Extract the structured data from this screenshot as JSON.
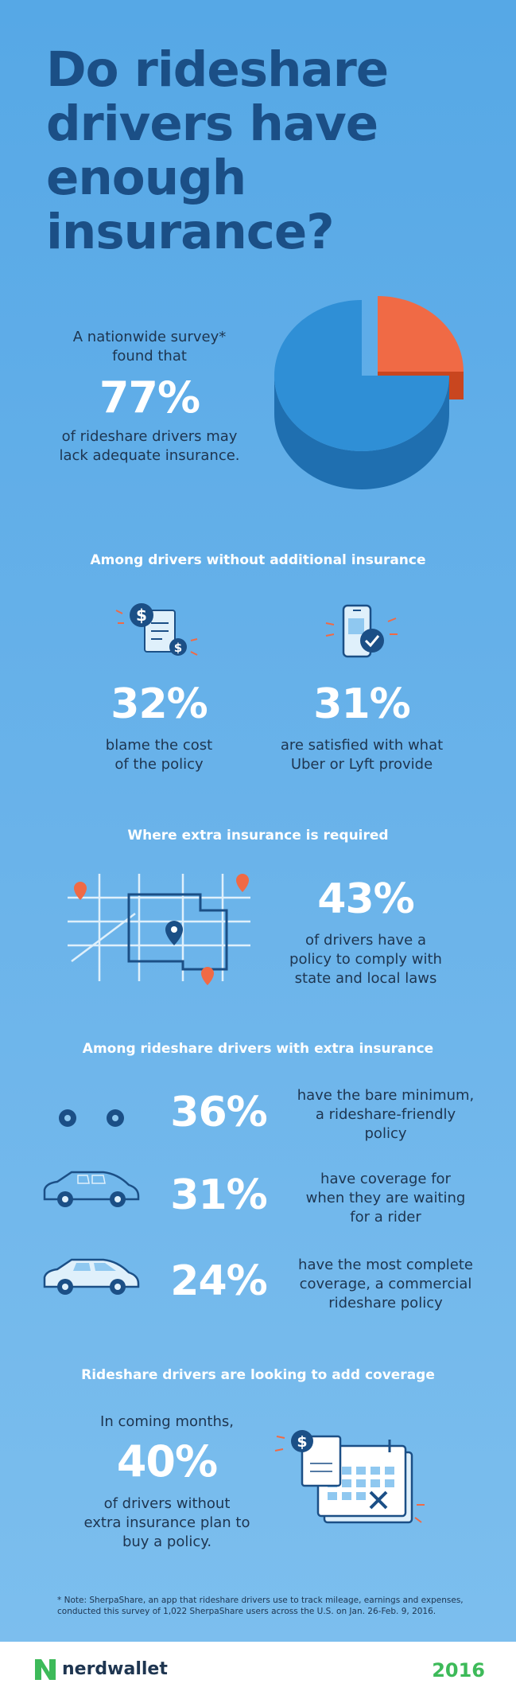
{
  "title": "Do rideshare drivers have enough insurance?",
  "intro": {
    "line1": "A nationwide survey*",
    "line2": "found that",
    "stat": "77%",
    "line3": "of rideshare drivers may",
    "line4": "lack adequate insurance."
  },
  "section1": {
    "heading": "Among drivers without additional insurance",
    "left": {
      "stat": "32%",
      "line1": "blame the cost",
      "line2": "of the policy"
    },
    "right": {
      "stat": "31%",
      "line1": "are satisfied with what",
      "line2": "Uber or Lyft provide"
    }
  },
  "section2": {
    "heading": "Where extra insurance is required",
    "stat": "43%",
    "line1": "of drivers have a",
    "line2": "policy to comply with",
    "line3": "state and local laws"
  },
  "section3": {
    "heading": "Among rideshare drivers with extra insurance",
    "rows": [
      {
        "stat": "36%",
        "line1": "have the bare minimum,",
        "line2": "a rideshare-friendly",
        "line3": "policy"
      },
      {
        "stat": "31%",
        "line1": "have coverage for",
        "line2": "when they are waiting",
        "line3": "for a rider"
      },
      {
        "stat": "24%",
        "line1": "have the most complete",
        "line2": "coverage, a commercial",
        "line3": "rideshare policy"
      }
    ]
  },
  "section4": {
    "heading": "Rideshare drivers are looking to add coverage",
    "line1": "In coming months,",
    "stat": "40%",
    "line2": "of drivers without",
    "line3": "extra insurance plan to",
    "line4": "buy a policy."
  },
  "note": {
    "line1": "* Note: SherpaShare, an app that rideshare drivers use to track mileage, earnings and expenses,",
    "line2": "conducted this survey of 1,022 SherpaShare users across the U.S. on Jan. 26-Feb. 9, 2016."
  },
  "footer": {
    "brand": "nerdwallet",
    "year": "2016"
  },
  "colors": {
    "blue": "#2f8fd6",
    "navy": "#1b4f86",
    "orange": "#f06a45",
    "green": "#3dba59"
  }
}
